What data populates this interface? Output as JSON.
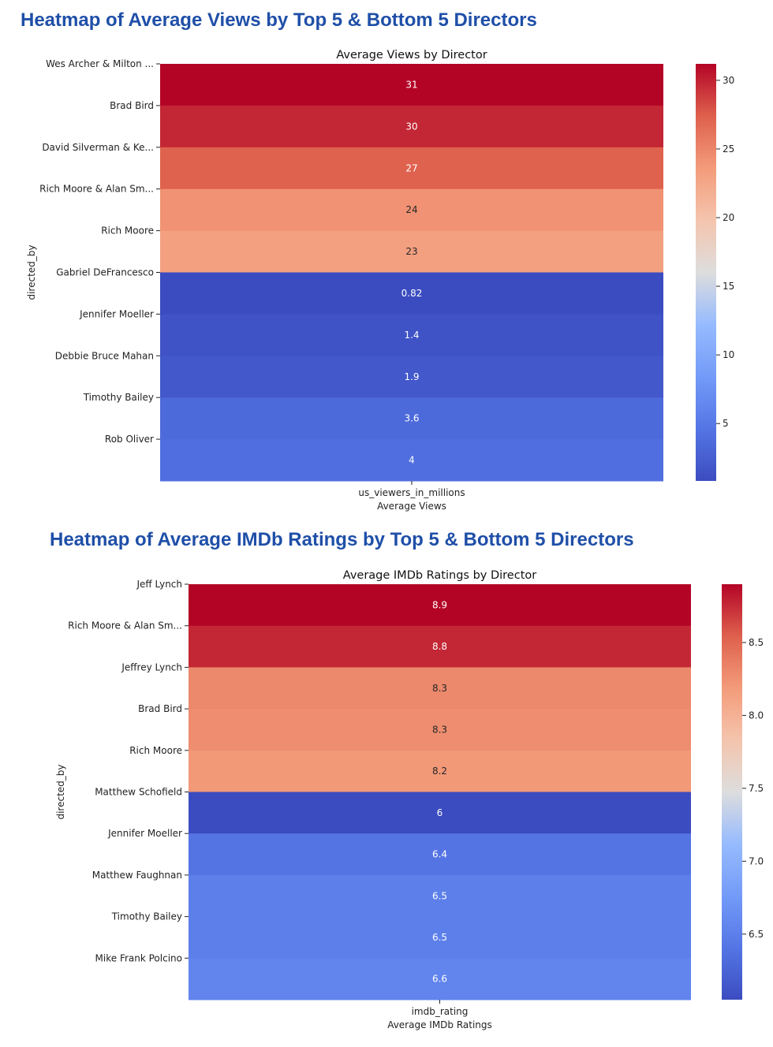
{
  "chart_data": [
    {
      "type": "heatmap",
      "section_title": "Heatmap of Average Views by Top 5 & Bottom 5 Directors",
      "title": "Average Views by Director",
      "ylabel": "directed_by",
      "xlabel": "Average Views",
      "column": "us_viewers_in_millions",
      "rows": [
        "Wes Archer & Milton ...",
        "Brad Bird",
        "David Silverman & Ke...",
        "Rich Moore & Alan Sm...",
        "Rich Moore",
        "Gabriel DeFrancesco",
        "Jennifer Moeller",
        "Debbie Bruce Mahan",
        "Timothy Bailey",
        "Rob Oliver"
      ],
      "values": [
        31.2,
        29.8,
        27.3,
        24.2,
        23.1,
        0.82,
        1.4,
        1.9,
        3.6,
        4.0
      ],
      "cell_labels": [
        "31",
        "30",
        "27",
        "24",
        "23",
        "0.82",
        "1.4",
        "1.9",
        "3.6",
        "4"
      ],
      "colorbar": {
        "vmin": 0.82,
        "vmax": 31.2,
        "ticks": [
          5,
          10,
          15,
          20,
          25,
          30
        ]
      },
      "colormap": "coolwarm"
    },
    {
      "type": "heatmap",
      "section_title": "Heatmap of Average IMDb Ratings by Top 5 & Bottom 5 Directors",
      "title": "Average IMDb Ratings by Director",
      "ylabel": "directed_by",
      "xlabel": "Average IMDb Ratings",
      "column": "imdb_rating",
      "rows": [
        "Jeff Lynch",
        "Rich Moore & Alan Sm...",
        "Jeffrey Lynch",
        "Brad Bird",
        "Rich Moore",
        "Matthew Schofield",
        "Jennifer Moeller",
        "Matthew Faughnan",
        "Timothy Bailey",
        "Mike Frank Polcino"
      ],
      "values": [
        8.9,
        8.77,
        8.3,
        8.27,
        8.2,
        6.05,
        6.4,
        6.5,
        6.5,
        6.55
      ],
      "cell_labels": [
        "8.9",
        "8.8",
        "8.3",
        "8.3",
        "8.2",
        "6",
        "6.4",
        "6.5",
        "6.5",
        "6.6"
      ],
      "colorbar": {
        "vmin": 6.05,
        "vmax": 8.9,
        "ticks": [
          6.5,
          7.0,
          7.5,
          8.0,
          8.5
        ],
        "tick_labels": [
          "6.5",
          "7.0",
          "7.5",
          "8.0",
          "8.5"
        ]
      },
      "colormap": "coolwarm"
    }
  ]
}
